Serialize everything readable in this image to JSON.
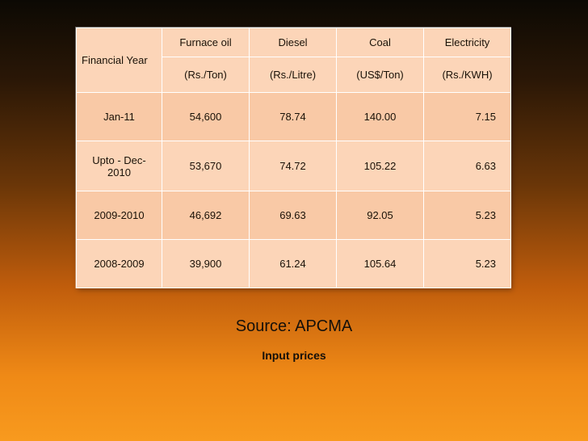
{
  "table": {
    "header_row1": [
      "Financial Year",
      "Furnace oil",
      "Diesel",
      "Coal",
      "Electricity"
    ],
    "header_row2": [
      "(Rs./Ton)",
      "(Rs./Litre)",
      "(US$/Ton)",
      "(Rs./KWH)"
    ],
    "rows": [
      [
        "Jan-11",
        "54,600",
        "78.74",
        "140.00",
        "7.15"
      ],
      [
        "Upto - Dec-2010",
        "53,670",
        "74.72",
        "105.22",
        "6.63"
      ],
      [
        "2009-2010",
        "46,692",
        "69.63",
        "92.05",
        "5.23"
      ],
      [
        "2008-2009",
        "39,900",
        "61.24",
        "105.64",
        "5.23"
      ]
    ]
  },
  "source": "Source: APCMA",
  "caption": "Input prices",
  "colors": {
    "cell_bg": "#fcd5b8",
    "cell_border": "#ffffff",
    "background_top": "#0c0904",
    "background_bottom": "#f89a1e"
  }
}
